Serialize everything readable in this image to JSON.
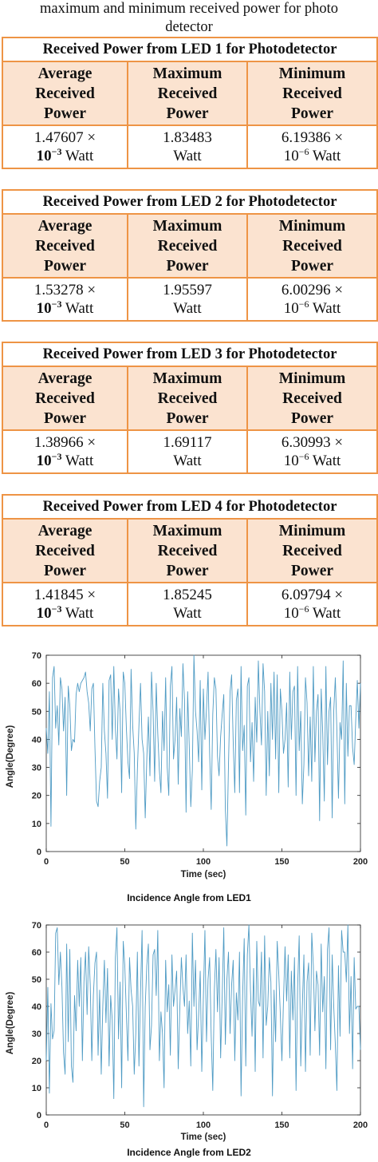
{
  "caption": {
    "line1": "maximum and minimum received power for photo",
    "line2": "detector"
  },
  "tables": [
    {
      "title": "Received Power  from LED 1 for Photodetector",
      "headers": [
        [
          "Average",
          "Received",
          "Power"
        ],
        [
          "Maximum",
          "Received",
          "Power"
        ],
        [
          "Minimum",
          "Received",
          "Power"
        ]
      ],
      "avg": {
        "mant": "1.47607  ×",
        "base": "10",
        "exp": "−3",
        "unit": " Watt"
      },
      "max": {
        "value": "1.83483",
        "unit": "Watt"
      },
      "min": {
        "mant": "6.19386 ×",
        "base": "10",
        "exp": "−6",
        "unit": " Watt"
      }
    },
    {
      "title": "Received Power  from LED 2 for Photodetector",
      "headers": [
        [
          "Average",
          "Received",
          "Power"
        ],
        [
          "Maximum",
          "Received",
          "Power"
        ],
        [
          "Minimum",
          "Received",
          "Power"
        ]
      ],
      "avg": {
        "mant": "1.53278 ×",
        "base": "10",
        "exp": "−3",
        "unit": " Watt"
      },
      "max": {
        "value": "1.95597",
        "unit": "Watt"
      },
      "min": {
        "mant": "6.00296 ×",
        "base": "10",
        "exp": "−6",
        "unit": " Watt"
      }
    },
    {
      "title": "Received Power  from LED 3 for Photodetector",
      "headers": [
        [
          "Average",
          "Received",
          "Power"
        ],
        [
          "Maximum",
          "Received",
          "Power"
        ],
        [
          "Minimum",
          "Received",
          "Power"
        ]
      ],
      "avg": {
        "mant": "1.38966 ×",
        "base": "10",
        "exp": "−3",
        "unit": " Watt"
      },
      "max": {
        "value": "1.69117",
        "unit": "Watt"
      },
      "min": {
        "mant": "6.30993 ×",
        "base": "10",
        "exp": "−6",
        "unit": " Watt"
      }
    },
    {
      "title": "Received Power  from LED 4 for Photodetector",
      "headers": [
        [
          "Average",
          "Received",
          "Power"
        ],
        [
          "Maximum",
          "Received",
          "Power"
        ],
        [
          "Minimum",
          "Received",
          "Power"
        ]
      ],
      "avg": {
        "mant": "1.41845 ×",
        "base": "10",
        "exp": "−3",
        "unit": " Watt"
      },
      "max": {
        "value": "1.85245",
        "unit": "Watt"
      },
      "min": {
        "mant": "6.09794 ×",
        "base": "10",
        "exp": "−6",
        "unit": " Watt"
      }
    }
  ],
  "colors": {
    "border": "#ee9445",
    "header_fill": "#fbe3d0",
    "line": "#4f9bc4"
  },
  "chart_data": [
    {
      "type": "line",
      "caption": "Incidence Angle from LED1",
      "xlabel": "Time (sec)",
      "ylabel": "Angle(Degree)",
      "xlim": [
        0,
        200
      ],
      "ylim": [
        0,
        70
      ],
      "xticks": [
        0,
        50,
        100,
        150,
        200
      ],
      "yticks": [
        0,
        10,
        20,
        30,
        40,
        50,
        60,
        70
      ],
      "grid": false,
      "x_step": 1,
      "x_start": 0,
      "values": [
        44,
        35,
        57,
        9,
        62,
        66,
        44,
        52,
        38,
        62,
        58,
        43,
        55,
        20,
        59,
        52,
        36,
        40,
        39,
        56,
        60,
        57,
        60,
        61,
        62,
        64,
        57,
        53,
        43,
        58,
        60,
        37,
        18,
        16,
        25,
        30,
        60,
        43,
        35,
        19,
        61,
        63,
        40,
        66,
        44,
        33,
        58,
        50,
        21,
        64,
        60,
        44,
        32,
        26,
        65,
        45,
        35,
        8,
        29,
        45,
        60,
        40,
        35,
        12,
        33,
        48,
        27,
        64,
        50,
        25,
        60,
        42,
        29,
        21,
        50,
        36,
        62,
        30,
        20,
        59,
        66,
        33,
        40,
        55,
        24,
        51,
        41,
        67,
        54,
        14,
        57,
        38,
        16,
        29,
        70,
        50,
        43,
        32,
        61,
        22,
        58,
        40,
        51,
        64,
        35,
        15,
        49,
        62,
        58,
        34,
        27,
        41,
        49,
        56,
        15,
        2,
        31,
        57,
        63,
        39,
        21,
        54,
        58,
        21,
        66,
        36,
        45,
        13,
        59,
        62,
        32,
        46,
        25,
        55,
        39,
        68,
        50,
        38,
        67,
        57,
        20,
        50,
        27,
        60,
        40,
        64,
        33,
        63,
        21,
        58,
        50,
        35,
        40,
        53,
        23,
        64,
        40,
        57,
        59,
        20,
        66,
        36,
        50,
        17,
        31,
        62,
        53,
        27,
        48,
        25,
        66,
        32,
        50,
        56,
        11,
        58,
        42,
        18,
        66,
        31,
        50,
        55,
        12,
        50,
        62,
        43,
        19,
        46,
        40,
        68,
        17,
        60,
        34,
        52,
        52,
        37,
        31,
        47,
        61,
        44,
        60
      ]
    },
    {
      "type": "line",
      "caption": "Incidence Angle from LED2",
      "xlabel": "Time (sec)",
      "ylabel": "Angle(Degree)",
      "xlim": [
        0,
        200
      ],
      "ylim": [
        0,
        70
      ],
      "xticks": [
        0,
        50,
        100,
        150,
        200
      ],
      "yticks": [
        0,
        10,
        20,
        30,
        40,
        50,
        60,
        70
      ],
      "grid": false,
      "x_step": 1,
      "x_start": 0,
      "values": [
        20,
        47,
        8,
        41,
        28,
        31,
        67,
        69,
        48,
        60,
        47,
        23,
        15,
        63,
        27,
        61,
        18,
        12,
        44,
        31,
        57,
        40,
        58,
        20,
        49,
        60,
        37,
        62,
        48,
        20,
        44,
        56,
        60,
        22,
        46,
        15,
        40,
        57,
        34,
        54,
        18,
        44,
        35,
        6,
        58,
        69,
        28,
        49,
        10,
        64,
        55,
        37,
        20,
        58,
        46,
        40,
        15,
        30,
        60,
        18,
        45,
        68,
        3,
        40,
        55,
        63,
        24,
        33,
        59,
        61,
        44,
        68,
        20,
        38,
        30,
        10,
        57,
        38,
        48,
        22,
        59,
        40,
        46,
        53,
        17,
        39,
        58,
        47,
        40,
        59,
        30,
        42,
        18,
        67,
        40,
        57,
        24,
        37,
        53,
        16,
        43,
        68,
        27,
        50,
        58,
        29,
        9,
        46,
        61,
        38,
        58,
        21,
        44,
        69,
        26,
        50,
        60,
        30,
        48,
        57,
        20,
        45,
        35,
        60,
        7,
        44,
        65,
        18,
        59,
        70,
        46,
        29,
        54,
        16,
        64,
        42,
        40,
        60,
        21,
        66,
        33,
        40,
        58,
        49,
        7,
        46,
        27,
        64,
        52,
        37,
        20,
        42,
        62,
        42,
        59,
        21,
        53,
        35,
        58,
        9,
        47,
        66,
        18,
        40,
        59,
        16,
        49,
        56,
        22,
        67,
        55,
        31,
        53,
        48,
        22,
        63,
        38,
        51,
        17,
        61,
        69,
        24,
        59,
        40,
        26,
        9,
        55,
        29,
        68,
        60,
        60,
        49,
        70,
        30,
        51,
        17,
        58,
        39,
        40,
        40,
        24
      ]
    }
  ]
}
